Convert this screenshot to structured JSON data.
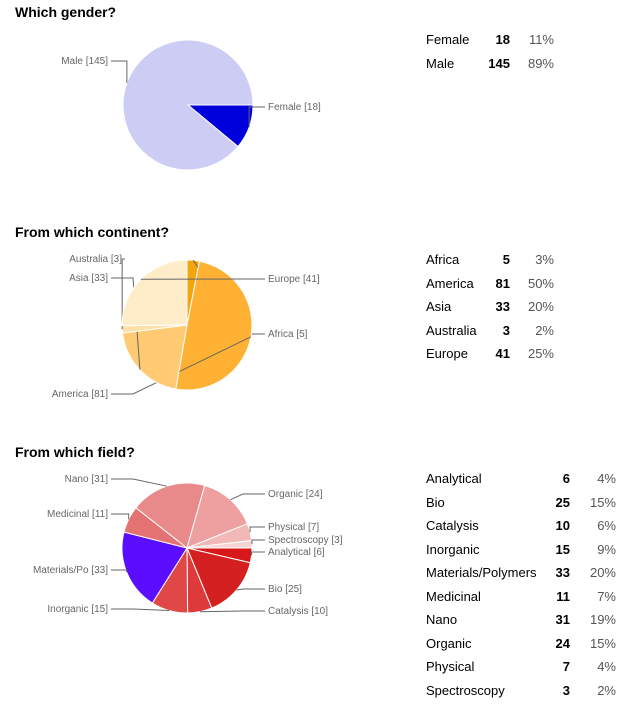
{
  "chart_data": [
    {
      "type": "pie",
      "title": "Which gender?",
      "slices": [
        {
          "label": "Female",
          "value": 18,
          "percent": "11%",
          "color": "#0000dd",
          "chart_label": "Female [18]"
        },
        {
          "label": "Male",
          "value": 145,
          "percent": "89%",
          "color": "#ccccf5",
          "chart_label": "Male [145]"
        }
      ]
    },
    {
      "type": "pie",
      "title": "From which continent?",
      "slices": [
        {
          "label": "Africa",
          "value": 5,
          "percent": "3%",
          "color": "#f5a30f",
          "chart_label": "Africa [5]"
        },
        {
          "label": "America",
          "value": 81,
          "percent": "50%",
          "color": "#ffb133",
          "chart_label": "America [81]"
        },
        {
          "label": "Asia",
          "value": 33,
          "percent": "20%",
          "color": "#ffca72",
          "chart_label": "Asia [33]"
        },
        {
          "label": "Australia",
          "value": 3,
          "percent": "2%",
          "color": "#ffdfa8",
          "chart_label": "Australia [3]"
        },
        {
          "label": "Europe",
          "value": 41,
          "percent": "25%",
          "color": "#ffecc8",
          "chart_label": "Europe [41]"
        }
      ]
    },
    {
      "type": "pie",
      "title": "From which field?",
      "slices": [
        {
          "label": "Analytical",
          "value": 6,
          "percent": "4%",
          "color": "#d81818",
          "chart_label": "Analytical [6]"
        },
        {
          "label": "Bio",
          "value": 25,
          "percent": "15%",
          "color": "#d42020",
          "chart_label": "Bio [25]"
        },
        {
          "label": "Catalysis",
          "value": 10,
          "percent": "6%",
          "color": "#dd3b3b",
          "chart_label": "Catalysis [10]"
        },
        {
          "label": "Inorganic",
          "value": 15,
          "percent": "9%",
          "color": "#e04848",
          "chart_label": "Inorganic [15]"
        },
        {
          "label": "Materials/Polymers",
          "value": 33,
          "percent": "20%",
          "color": "#5a0dff",
          "chart_label": "Materials/Po [33]"
        },
        {
          "label": "Medicinal",
          "value": 11,
          "percent": "7%",
          "color": "#e57272",
          "chart_label": "Medicinal [11]"
        },
        {
          "label": "Nano",
          "value": 31,
          "percent": "19%",
          "color": "#e88a8a",
          "chart_label": "Nano [31]"
        },
        {
          "label": "Organic",
          "value": 24,
          "percent": "15%",
          "color": "#eea0a0",
          "chart_label": "Organic [24]"
        },
        {
          "label": "Physical",
          "value": 7,
          "percent": "4%",
          "color": "#f2b8b8",
          "chart_label": "Physical [7]"
        },
        {
          "label": "Spectroscopy",
          "value": 3,
          "percent": "2%",
          "color": "#f7d4d4",
          "chart_label": "Spectroscopy [3]"
        }
      ]
    }
  ]
}
